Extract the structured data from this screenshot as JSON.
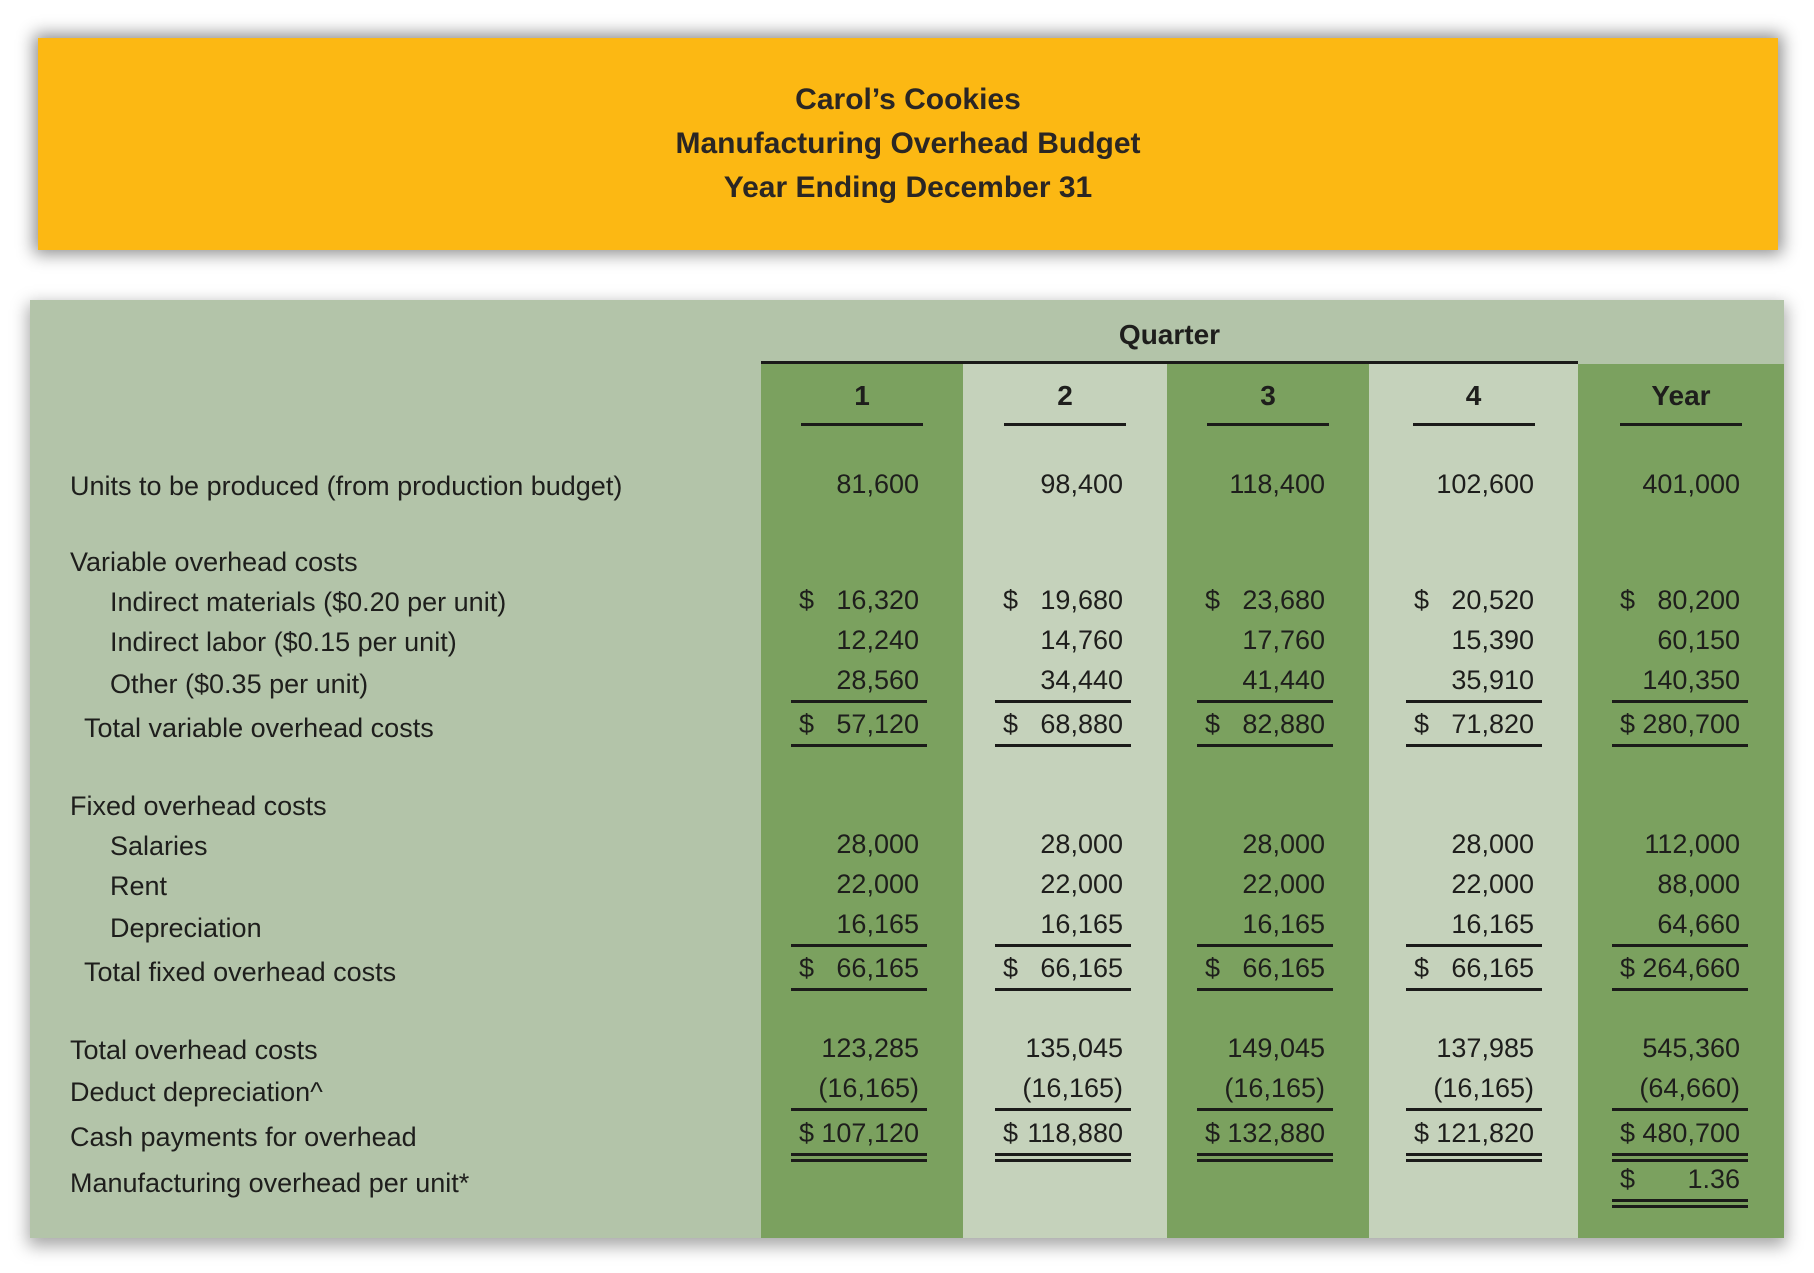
{
  "banner": {
    "line1": "Carol’s Cookies",
    "line2": "Manufacturing Overhead Budget",
    "line3": "Year Ending December 31"
  },
  "colors": {
    "banner_bg": "#FCB813",
    "panel_bg": "#B3C4A9",
    "column_dark": "#7BA15F",
    "column_light": "#C5D2BB",
    "text": "#1E1E1C",
    "rule": "#1B1B19"
  },
  "table": {
    "quarter_header": "Quarter",
    "column_headers": [
      "1",
      "2",
      "3",
      "4",
      "Year"
    ],
    "rows": [
      {
        "id": "units",
        "label": "Units to be produced (from production budget)",
        "indent": "base",
        "values": [
          "81,600",
          "98,400",
          "118,400",
          "102,600",
          "401,000"
        ]
      },
      {
        "id": "spacer-1",
        "type": "spacer"
      },
      {
        "id": "variable-section",
        "type": "section",
        "label": "Variable overhead costs",
        "indent": "base"
      },
      {
        "id": "indirect-materials",
        "label": "Indirect materials ($0.20 per unit)",
        "indent": "sub",
        "currency": true,
        "values": [
          "16,320",
          "19,680",
          "23,680",
          "20,520",
          "80,200"
        ]
      },
      {
        "id": "indirect-labor",
        "label": "Indirect labor ($0.15 per unit)",
        "indent": "sub",
        "values": [
          "12,240",
          "14,760",
          "17,760",
          "15,390",
          "60,150"
        ]
      },
      {
        "id": "other",
        "label": "Other ($0.35 per unit)",
        "indent": "sub",
        "underline": "single",
        "values": [
          "28,560",
          "34,440",
          "41,440",
          "35,910",
          "140,350"
        ]
      },
      {
        "id": "total-variable",
        "label": "Total variable overhead costs",
        "indent": "total",
        "currency": true,
        "underline": "single",
        "values": [
          "57,120",
          "68,880",
          "82,880",
          "71,820",
          "280,700"
        ]
      },
      {
        "id": "spacer-2",
        "type": "spacer"
      },
      {
        "id": "fixed-section",
        "type": "section",
        "label": "Fixed overhead costs",
        "indent": "base"
      },
      {
        "id": "salaries",
        "label": "Salaries",
        "indent": "sub",
        "values": [
          "28,000",
          "28,000",
          "28,000",
          "28,000",
          "112,000"
        ]
      },
      {
        "id": "rent",
        "label": "Rent",
        "indent": "sub",
        "values": [
          "22,000",
          "22,000",
          "22,000",
          "22,000",
          "88,000"
        ]
      },
      {
        "id": "depreciation",
        "label": "Depreciation",
        "indent": "sub",
        "underline": "single",
        "values": [
          "16,165",
          "16,165",
          "16,165",
          "16,165",
          "64,660"
        ]
      },
      {
        "id": "total-fixed",
        "label": "Total fixed overhead costs",
        "indent": "total",
        "currency": true,
        "underline": "single",
        "values": [
          "66,165",
          "66,165",
          "66,165",
          "66,165",
          "264,660"
        ]
      },
      {
        "id": "spacer-3",
        "type": "spacer"
      },
      {
        "id": "total-overhead",
        "label": "Total overhead costs",
        "indent": "base",
        "values": [
          "123,285",
          "135,045",
          "149,045",
          "137,985",
          "545,360"
        ]
      },
      {
        "id": "deduct-depreciation",
        "label": "Deduct depreciation^",
        "indent": "base",
        "underline": "single",
        "values": [
          "(16,165)",
          "(16,165)",
          "(16,165)",
          "(16,165)",
          "(64,660)"
        ]
      },
      {
        "id": "cash-payments",
        "label": "Cash payments for overhead",
        "indent": "base",
        "currency": true,
        "underline": "double",
        "values": [
          "107,120",
          "118,880",
          "132,880",
          "121,820",
          "480,700"
        ]
      },
      {
        "id": "overhead-per-unit",
        "label": "Manufacturing overhead per unit*",
        "indent": "base",
        "currency": true,
        "underline": "double",
        "values": [
          "",
          "",
          "",
          "",
          "1.36"
        ]
      }
    ]
  }
}
